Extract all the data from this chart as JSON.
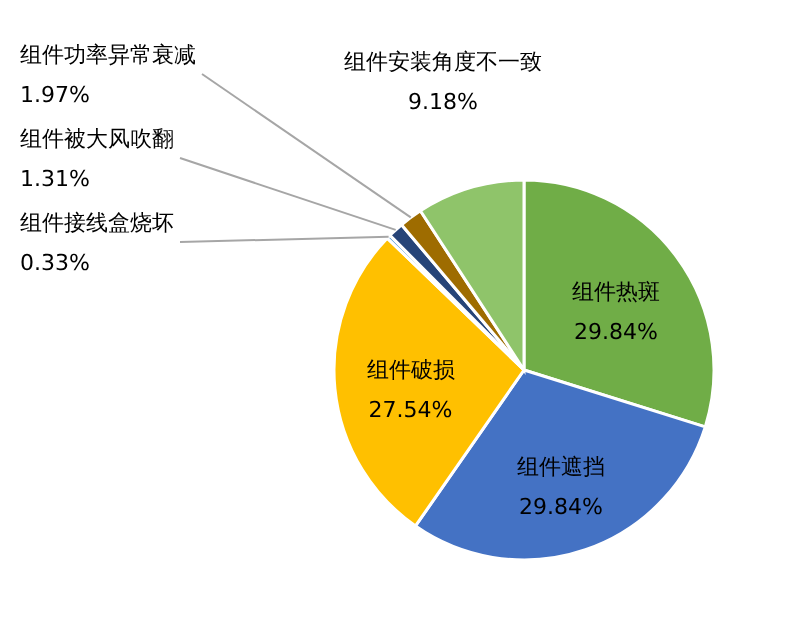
{
  "chart_data": {
    "type": "pie",
    "categories": [
      "组件热斑",
      "组件遮挡",
      "组件破损",
      "组件接线盒烧坏",
      "组件被大风吹翻",
      "组件功率异常衰减",
      "组件安装角度不一致"
    ],
    "values": [
      29.84,
      29.84,
      27.54,
      0.33,
      1.31,
      1.97,
      9.18
    ],
    "colors": [
      "#70ad47",
      "#4472c4",
      "#ffc000",
      "#5b9bd5",
      "#264478",
      "#9e6c00",
      "#8fc46a"
    ],
    "value_labels": [
      "29.84%",
      "29.84%",
      "27.54%",
      "0.33%",
      "1.31%",
      "1.97%",
      "9.18%"
    ]
  }
}
